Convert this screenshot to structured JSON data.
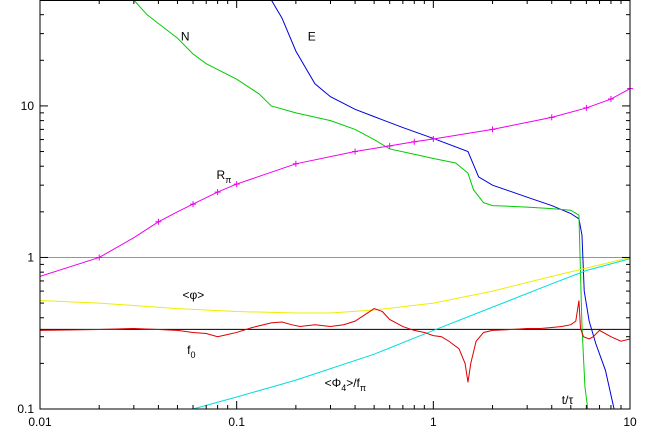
{
  "chart_data": {
    "type": "line",
    "xscale": "log",
    "yscale": "log",
    "xlim": [
      0.01,
      10
    ],
    "ylim": [
      0.1,
      50
    ],
    "grid": false,
    "xlabel": "t/τ",
    "ylabel": "",
    "x_ticks": [
      {
        "value": 0.01,
        "label": "0.01"
      },
      {
        "value": 0.1,
        "label": "0.1"
      },
      {
        "value": 1,
        "label": "1"
      },
      {
        "value": 10,
        "label": "10"
      }
    ],
    "y_ticks": [
      {
        "value": 0.1,
        "label": "0.1"
      },
      {
        "value": 1,
        "label": "1"
      },
      {
        "value": 10,
        "label": "10"
      }
    ],
    "series": [
      {
        "name": "E",
        "color": "#0000dd",
        "points": [
          [
            0.15,
            50
          ],
          [
            0.17,
            38
          ],
          [
            0.2,
            23
          ],
          [
            0.25,
            14
          ],
          [
            0.3,
            11.5
          ],
          [
            0.4,
            9.5
          ],
          [
            0.5,
            8.5
          ],
          [
            0.7,
            7.2
          ],
          [
            1.0,
            6.1
          ],
          [
            1.5,
            5.0
          ],
          [
            1.7,
            3.4
          ],
          [
            2.0,
            3.0
          ],
          [
            3.0,
            2.5
          ],
          [
            4.0,
            2.2
          ],
          [
            5.0,
            1.95
          ],
          [
            5.5,
            1.8
          ],
          [
            5.7,
            1.4
          ],
          [
            5.85,
            0.6
          ],
          [
            6.2,
            0.38
          ],
          [
            6.7,
            0.27
          ],
          [
            7.5,
            0.18
          ],
          [
            8.3,
            0.1
          ]
        ]
      },
      {
        "name": "N",
        "color": "#00cc00",
        "points": [
          [
            0.03,
            50
          ],
          [
            0.035,
            40
          ],
          [
            0.04,
            35
          ],
          [
            0.05,
            28
          ],
          [
            0.06,
            22
          ],
          [
            0.07,
            19
          ],
          [
            0.1,
            15
          ],
          [
            0.13,
            12
          ],
          [
            0.15,
            10
          ],
          [
            0.2,
            9.0
          ],
          [
            0.3,
            8.0
          ],
          [
            0.4,
            7.0
          ],
          [
            0.5,
            6.0
          ],
          [
            0.6,
            5.2
          ],
          [
            0.8,
            4.8
          ],
          [
            1.0,
            4.5
          ],
          [
            1.3,
            4.2
          ],
          [
            1.5,
            3.6
          ],
          [
            1.6,
            2.8
          ],
          [
            1.8,
            2.3
          ],
          [
            2.0,
            2.2
          ],
          [
            3.0,
            2.15
          ],
          [
            4.0,
            2.1
          ],
          [
            5.0,
            2.05
          ],
          [
            5.5,
            1.9
          ],
          [
            5.6,
            0.8
          ],
          [
            5.7,
            0.35
          ],
          [
            5.8,
            0.22
          ],
          [
            5.9,
            0.14
          ],
          [
            6.1,
            0.1
          ]
        ]
      },
      {
        "name": "Rπ",
        "color": "#ee00ee",
        "points": [
          [
            0.01,
            0.75
          ],
          [
            0.02,
            1.0
          ],
          [
            0.03,
            1.35
          ],
          [
            0.04,
            1.72
          ],
          [
            0.05,
            2.0
          ],
          [
            0.06,
            2.25
          ],
          [
            0.08,
            2.7
          ],
          [
            0.1,
            3.05
          ],
          [
            0.2,
            4.15
          ],
          [
            0.4,
            5.0
          ],
          [
            0.6,
            5.45
          ],
          [
            0.8,
            5.8
          ],
          [
            1.0,
            6.05
          ],
          [
            2.0,
            7.0
          ],
          [
            4.0,
            8.4
          ],
          [
            6.0,
            9.7
          ],
          [
            8.0,
            11.1
          ],
          [
            10.0,
            13.0
          ]
        ]
      },
      {
        "name": "<φ>",
        "color": "#eeee00",
        "points": [
          [
            0.01,
            0.52
          ],
          [
            0.02,
            0.5
          ],
          [
            0.05,
            0.46
          ],
          [
            0.1,
            0.44
          ],
          [
            0.2,
            0.43
          ],
          [
            0.3,
            0.43
          ],
          [
            0.5,
            0.45
          ],
          [
            1.0,
            0.5
          ],
          [
            2.0,
            0.6
          ],
          [
            4.0,
            0.75
          ],
          [
            6.0,
            0.85
          ],
          [
            10.0,
            1.0
          ]
        ]
      },
      {
        "name": "<Φ4>/fπ",
        "color": "#00dddd",
        "points": [
          [
            0.06,
            0.1
          ],
          [
            0.1,
            0.12
          ],
          [
            0.2,
            0.155
          ],
          [
            0.5,
            0.23
          ],
          [
            1.0,
            0.33
          ],
          [
            2.0,
            0.47
          ],
          [
            4.0,
            0.67
          ],
          [
            6.0,
            0.82
          ],
          [
            10.0,
            0.98
          ]
        ]
      },
      {
        "name": "f0",
        "color": "#dd0000",
        "points": [
          [
            0.01,
            0.33
          ],
          [
            0.02,
            0.335
          ],
          [
            0.03,
            0.34
          ],
          [
            0.04,
            0.335
          ],
          [
            0.05,
            0.33
          ],
          [
            0.06,
            0.32
          ],
          [
            0.07,
            0.315
          ],
          [
            0.08,
            0.3
          ],
          [
            0.09,
            0.31
          ],
          [
            0.1,
            0.32
          ],
          [
            0.12,
            0.345
          ],
          [
            0.15,
            0.37
          ],
          [
            0.17,
            0.375
          ],
          [
            0.19,
            0.36
          ],
          [
            0.21,
            0.35
          ],
          [
            0.25,
            0.36
          ],
          [
            0.3,
            0.35
          ],
          [
            0.35,
            0.36
          ],
          [
            0.4,
            0.38
          ],
          [
            0.45,
            0.42
          ],
          [
            0.5,
            0.46
          ],
          [
            0.55,
            0.44
          ],
          [
            0.6,
            0.39
          ],
          [
            0.7,
            0.35
          ],
          [
            0.8,
            0.33
          ],
          [
            0.9,
            0.32
          ],
          [
            1.0,
            0.305
          ],
          [
            1.1,
            0.3
          ],
          [
            1.2,
            0.28
          ],
          [
            1.35,
            0.25
          ],
          [
            1.45,
            0.2
          ],
          [
            1.5,
            0.15
          ],
          [
            1.55,
            0.2
          ],
          [
            1.65,
            0.28
          ],
          [
            1.8,
            0.32
          ],
          [
            2.0,
            0.33
          ],
          [
            2.5,
            0.335
          ],
          [
            3.0,
            0.34
          ],
          [
            3.5,
            0.34
          ],
          [
            4.0,
            0.345
          ],
          [
            4.5,
            0.35
          ],
          [
            5.0,
            0.36
          ],
          [
            5.3,
            0.38
          ],
          [
            5.5,
            0.52
          ],
          [
            5.6,
            0.34
          ],
          [
            5.8,
            0.3
          ],
          [
            6.2,
            0.29
          ],
          [
            6.5,
            0.3
          ],
          [
            7.0,
            0.33
          ],
          [
            8.0,
            0.3
          ],
          [
            9.0,
            0.28
          ],
          [
            10.0,
            0.29
          ]
        ]
      }
    ],
    "reference_lines": [
      {
        "y": 1.0,
        "color": "#ff6666"
      },
      {
        "y": 0.335,
        "color": "#000000"
      }
    ],
    "markers": [
      {
        "series": "Rπ",
        "x": [
          0.02,
          0.04,
          0.06,
          0.08,
          0.1,
          0.2,
          0.4,
          0.6,
          0.8,
          1.0,
          2.0,
          4.0,
          6.0,
          8.0,
          10.0
        ]
      }
    ],
    "curve_labels": [
      {
        "text": "N",
        "sub": "",
        "x": 0.052,
        "y": 27
      },
      {
        "text": "E",
        "sub": "",
        "x": 0.23,
        "y": 27
      },
      {
        "text": "R",
        "sub": "π",
        "x": 0.079,
        "y": 3.3
      },
      {
        "text": "<φ>",
        "sub": "",
        "x": 0.053,
        "y": 0.53
      },
      {
        "text": "f",
        "sub": "0",
        "x": 0.056,
        "y": 0.23
      },
      {
        "text": "<Φ",
        "sub": "4",
        "tail": ">/f",
        "sub2": "π",
        "x": 0.28,
        "y": 0.14
      },
      {
        "text": "t/τ",
        "sub": "",
        "x": 4.5,
        "y": 0.108
      }
    ]
  }
}
